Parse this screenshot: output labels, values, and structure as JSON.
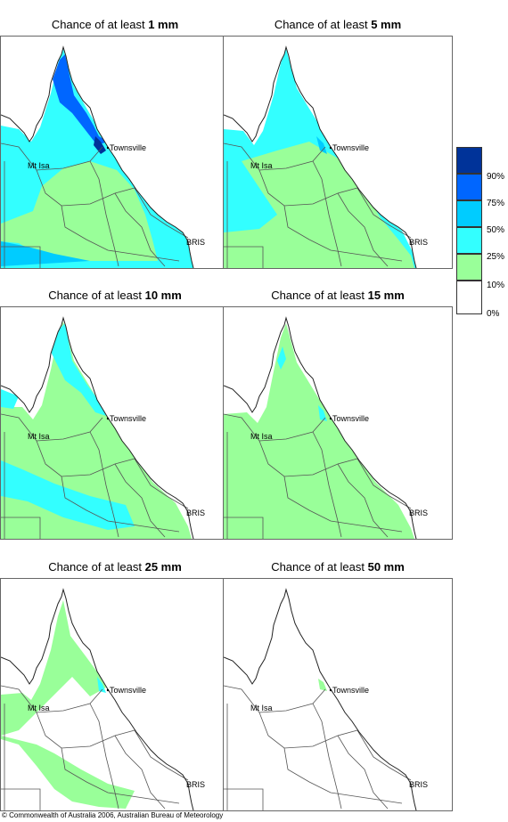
{
  "panels": [
    {
      "prefix": "Chance of at least ",
      "amount": "1 mm",
      "level": 1
    },
    {
      "prefix": "Chance of at least ",
      "amount": "5 mm",
      "level": 5
    },
    {
      "prefix": "Chance of at least ",
      "amount": "10 mm",
      "level": 10
    },
    {
      "prefix": "Chance of at least ",
      "amount": "15 mm",
      "level": 15
    },
    {
      "prefix": "Chance of at least ",
      "amount": "25 mm",
      "level": 25
    },
    {
      "prefix": "Chance of at least ",
      "amount": "50 mm",
      "level": 50
    }
  ],
  "places": {
    "townsville": "Townsville",
    "mt_isa": "Mt Isa",
    "bris": "BRIS"
  },
  "legend": {
    "classes": [
      {
        "label": "90%",
        "color": "#003399"
      },
      {
        "label": "75%",
        "color": "#0066ff"
      },
      {
        "label": "50%",
        "color": "#00ccff"
      },
      {
        "label": "25%",
        "color": "#33ffff"
      },
      {
        "label": "10%",
        "color": "#99ff99"
      },
      {
        "label": "0%",
        "color": "#ffffff"
      }
    ]
  },
  "footer": "© Commonwealth of Australia 2006, Australian Bureau of Meteorology"
}
